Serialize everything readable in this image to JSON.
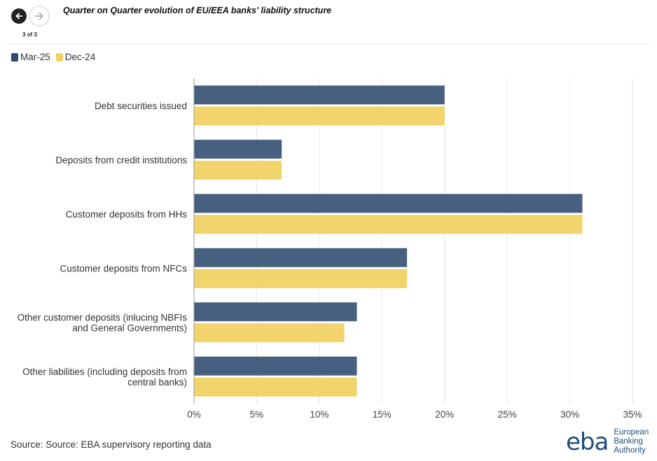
{
  "navigation": {
    "prev_icon": "arrow-left-icon",
    "next_icon": "arrow-right-icon",
    "counter": "3 of 3"
  },
  "chart_data": {
    "type": "bar",
    "orientation": "horizontal",
    "title": "Quarter on Quarter evolution of EU/EEA banks' liability structure",
    "categories": [
      "Debt securities issued",
      "Deposits from credit institutions",
      "Customer deposits from HHs",
      "Customer deposits from NFCs",
      "Other customer deposits (inlucing NBFIs and General Governments)",
      "Other liabilities (including deposits from central banks)"
    ],
    "category_lines": [
      [
        "Debt securities issued"
      ],
      [
        "Deposits from credit institutions"
      ],
      [
        "Customer deposits from HHs"
      ],
      [
        "Customer deposits from NFCs"
      ],
      [
        "Other customer deposits (inlucing NBFIs",
        "and General Governments)"
      ],
      [
        "Other liabilities (including deposits from",
        "central banks)"
      ]
    ],
    "series": [
      {
        "name": "Mar-25",
        "color": "#2f4a6d",
        "values": [
          20,
          7,
          31,
          17,
          13,
          13
        ]
      },
      {
        "name": "Dec-24",
        "color": "#f0d264",
        "values": [
          20,
          7,
          31,
          17,
          12,
          13
        ]
      }
    ],
    "xlim": [
      0,
      35
    ],
    "xticks": [
      "0%",
      "5%",
      "10%",
      "15%",
      "20%",
      "25%",
      "30%",
      "35%"
    ],
    "xtick_values": [
      0,
      5,
      10,
      15,
      20,
      25,
      30,
      35
    ],
    "grid": true,
    "legend_position": "top-left"
  },
  "source": "Source: Source: EBA supervisory reporting data",
  "logo": {
    "mark": "eba",
    "line1": "European",
    "line2": "Banking",
    "line3": "Authority"
  }
}
